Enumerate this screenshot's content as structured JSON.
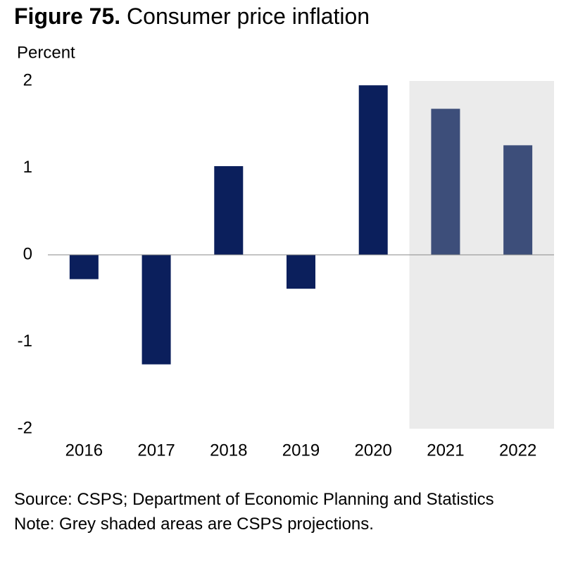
{
  "chart_data": {
    "type": "bar",
    "figure_label": "Figure 75.",
    "title": "Consumer price inflation",
    "y_label": "Percent",
    "categories": [
      "2016",
      "2017",
      "2018",
      "2019",
      "2020",
      "2021",
      "2022"
    ],
    "values": [
      -0.28,
      -1.26,
      1.02,
      -0.39,
      1.95,
      1.68,
      1.26
    ],
    "colors": [
      "#0b1f5c",
      "#0b1f5c",
      "#0b1f5c",
      "#0b1f5c",
      "#0b1f5c",
      "#3d4e7a",
      "#3d4e7a"
    ],
    "shaded_categories": [
      "2021",
      "2022"
    ],
    "shade_color": "#ebebeb",
    "ylim": [
      -2,
      2
    ],
    "yticks": [
      -2,
      -1,
      0,
      1,
      2
    ],
    "source": "Source: CSPS; Department of Economic Planning and Statistics",
    "note": "Note: Grey shaded areas are CSPS projections."
  }
}
